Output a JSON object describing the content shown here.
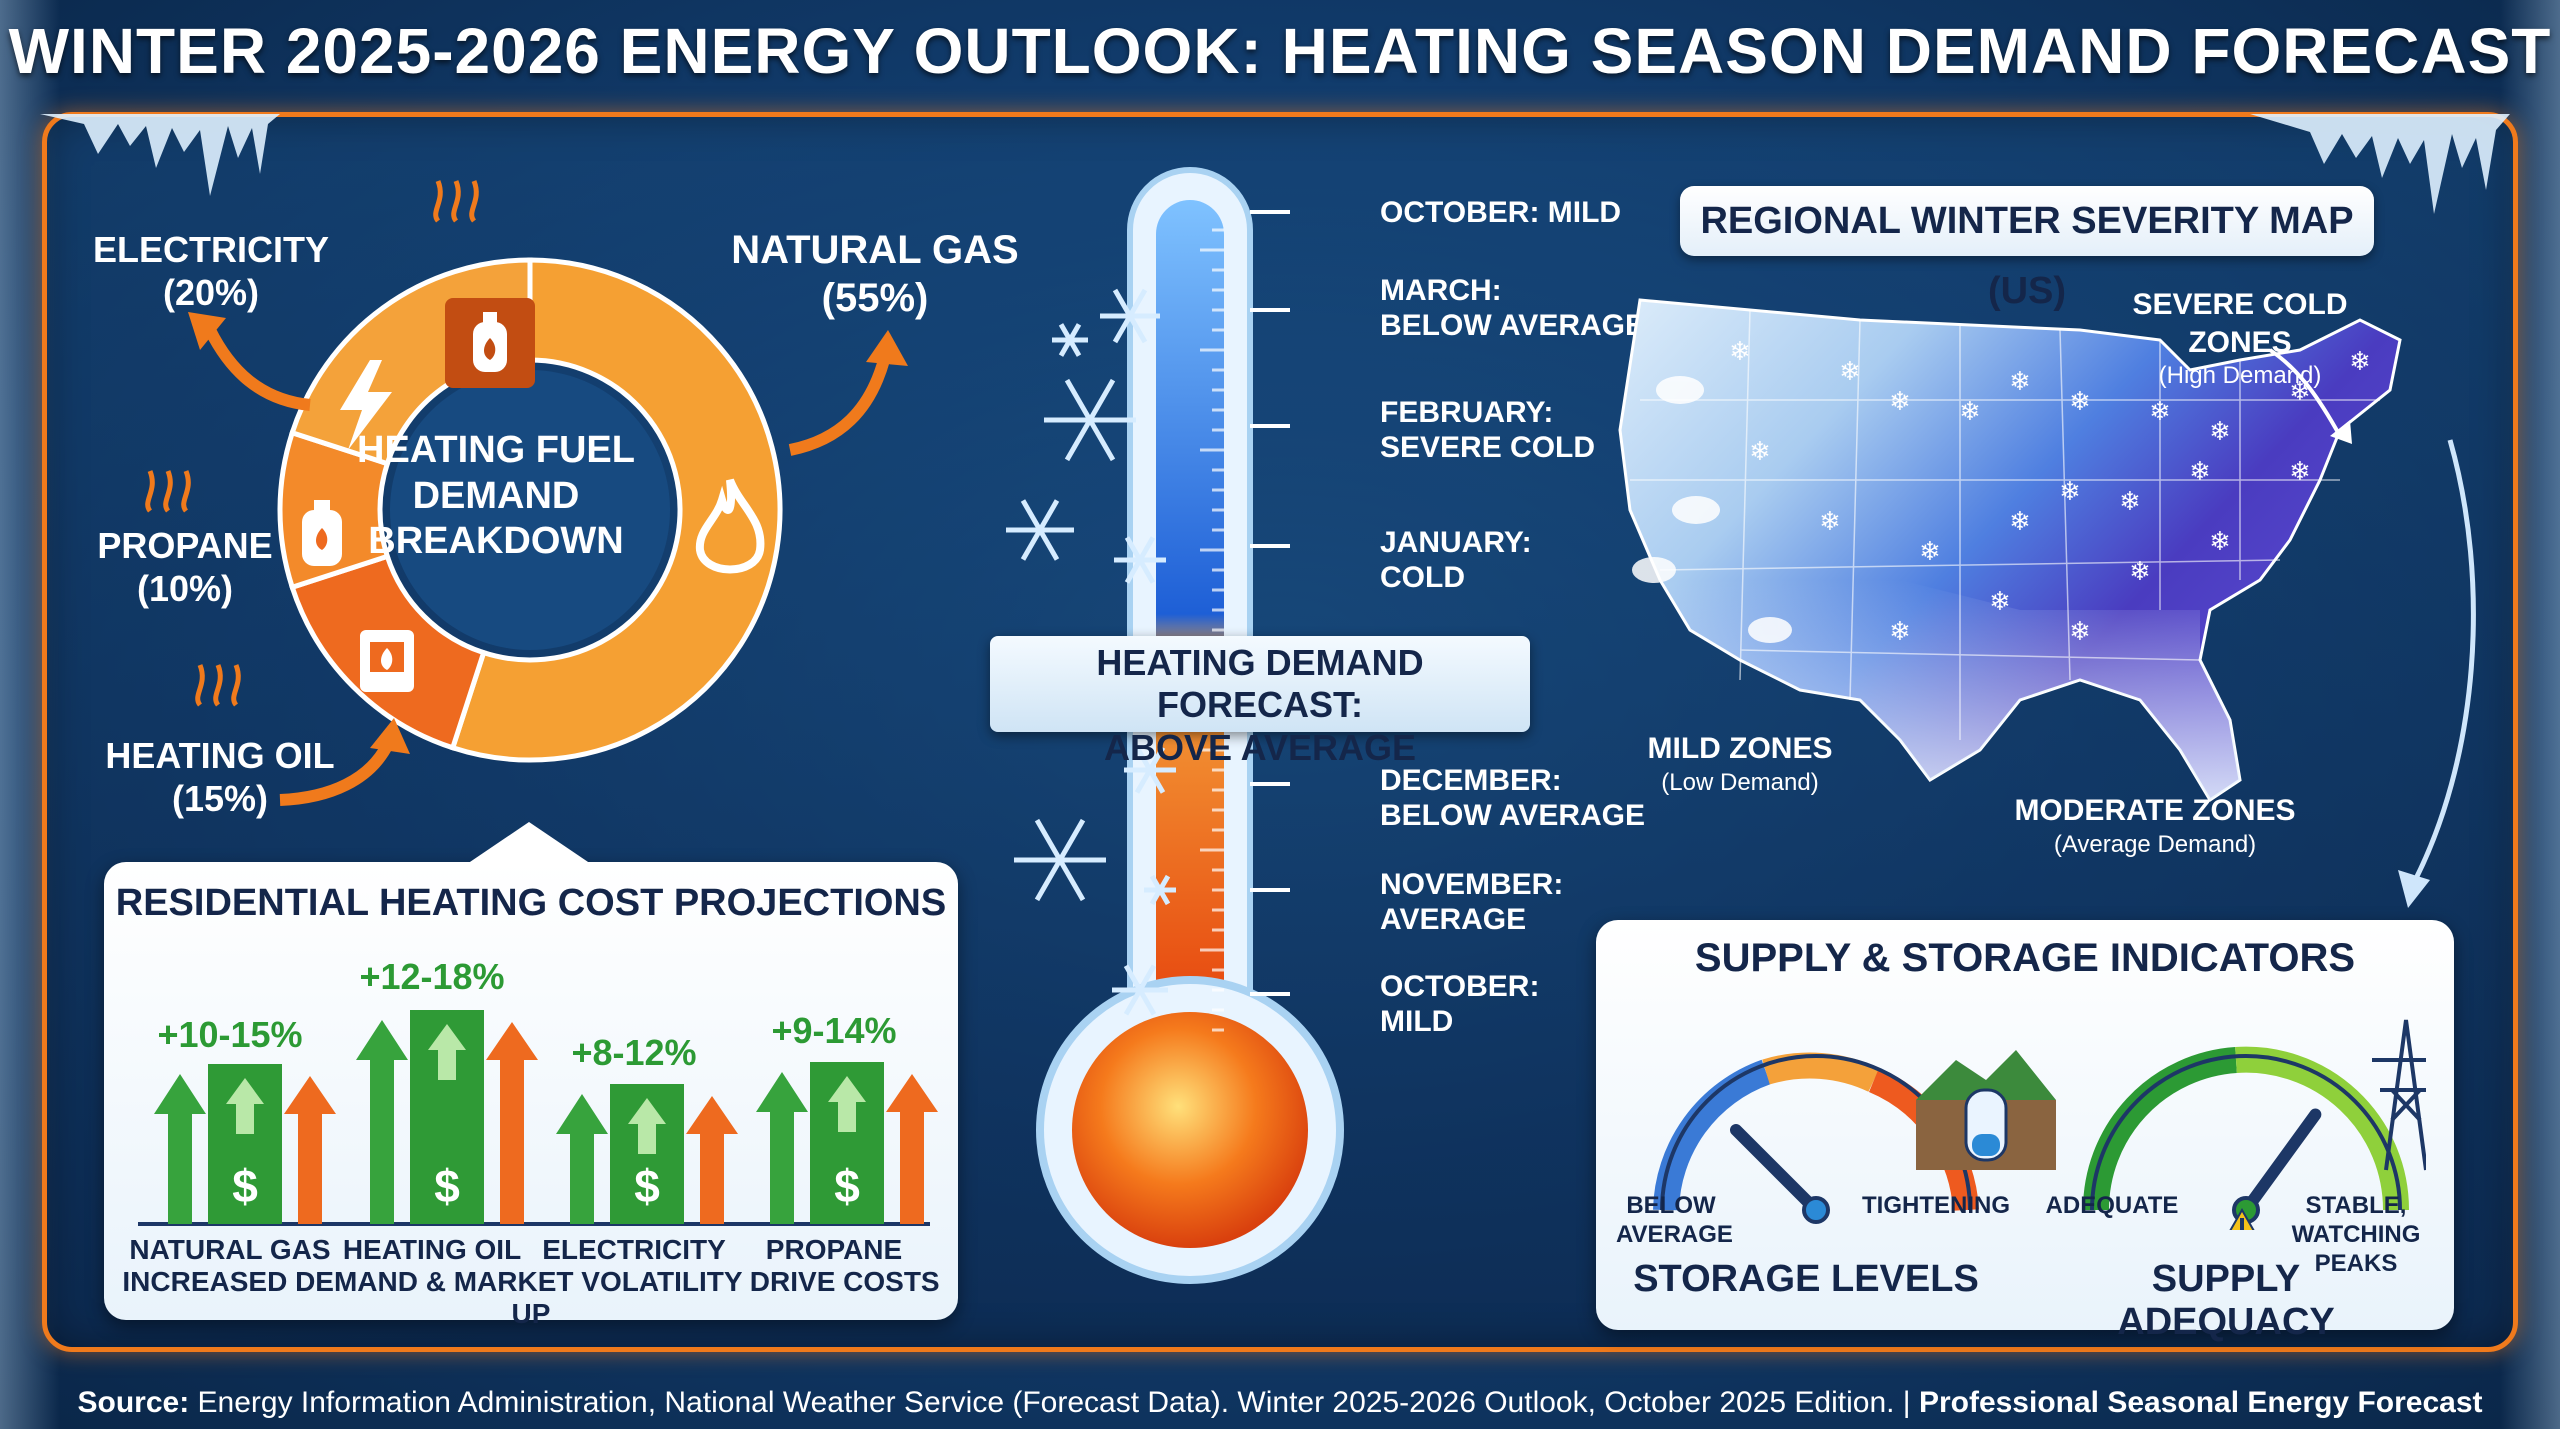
{
  "title": "WINTER 2025-2026 ENERGY OUTLOOK: HEATING SEASON DEMAND FORECAST",
  "fuel_breakdown": {
    "center_label": [
      "HEATING FUEL",
      "DEMAND",
      "BREAKDOWN"
    ],
    "slices": [
      {
        "name": "NATURAL GAS",
        "pct_label": "(55%)",
        "value": 55,
        "color": "#f5a033"
      },
      {
        "name": "HEATING OIL",
        "pct_label": "(15%)",
        "value": 15,
        "color": "#ee6a1f"
      },
      {
        "name": "PROPANE",
        "pct_label": "(10%)",
        "value": 10,
        "color": "#f38a2a"
      },
      {
        "name": "ELECTRICITY",
        "pct_label": "(20%)",
        "value": 20,
        "color": "#f4a23a"
      }
    ]
  },
  "cost_projections": {
    "title": "RESIDENTIAL HEATING COST PROJECTIONS",
    "items": [
      {
        "name": "NATURAL GAS",
        "change": "+10-15%"
      },
      {
        "name": "HEATING OIL",
        "change": "+12-18%"
      },
      {
        "name": "ELECTRICITY",
        "change": "+8-12%"
      },
      {
        "name": "PROPANE",
        "change": "+9-14%"
      }
    ],
    "footer": "INCREASED DEMAND & MARKET VOLATILITY DRIVE COSTS UP"
  },
  "thermometer": {
    "banner": [
      "HEATING DEMAND FORECAST:",
      "ABOVE AVERAGE"
    ],
    "months_upper": [
      [
        "OCTOBER: MILD"
      ],
      [
        "MARCH:",
        "BELOW AVERAGE"
      ],
      [
        "FEBRUARY:",
        "SEVERE COLD"
      ],
      [
        "JANUARY:",
        "COLD"
      ]
    ],
    "months_lower": [
      [
        "DECEMBER:",
        "BELOW AVERAGE"
      ],
      [
        "NOVEMBER:",
        "AVERAGE"
      ],
      [
        "OCTOBER:",
        "MILD"
      ]
    ]
  },
  "map": {
    "title": "REGIONAL WINTER SEVERITY MAP (US)",
    "severe": {
      "label": "SEVERE COLD ZONES",
      "sub": "(High Demand)"
    },
    "mild": {
      "label": "MILD ZONES",
      "sub": "(Low Demand)"
    },
    "moderate": {
      "label": "MODERATE ZONES",
      "sub": "(Average Demand)"
    }
  },
  "supply": {
    "title": "SUPPLY & STORAGE INDICATORS",
    "storage": {
      "name": "STORAGE LEVELS",
      "left": [
        "BELOW",
        "AVERAGE"
      ],
      "right": "TIGHTENING",
      "level": 0.35
    },
    "adequacy": {
      "name": "SUPPLY ADEQUACY",
      "left": "ADEQUATE",
      "right": [
        "STABLE,",
        "WATCHING PEAKS"
      ],
      "level": 0.7
    }
  },
  "source": {
    "prefix": "Source:",
    "text": " Energy Information Administration, National Weather Service (Forecast Data). Winter 2025-2026 Outlook, October 2025 Edition. | ",
    "suffix": "Professional Seasonal Energy Forecast"
  }
}
